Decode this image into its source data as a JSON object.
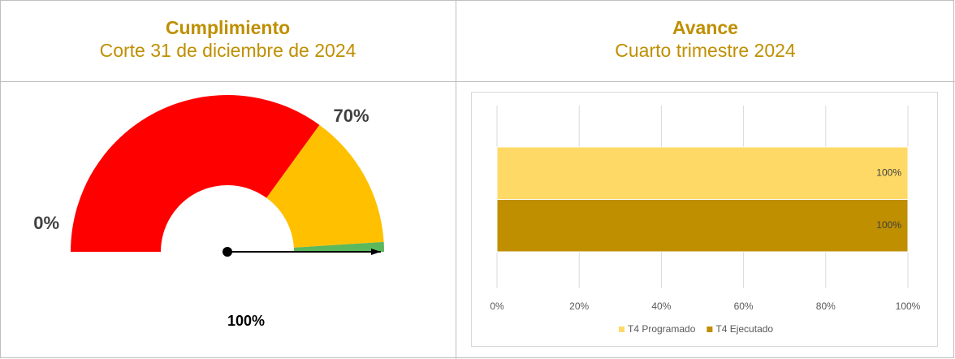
{
  "header": [
    {
      "title": "Cumplimiento",
      "subtitle": "Corte 31 de diciembre de 2024"
    },
    {
      "title": "Avance",
      "subtitle": "Cuarto trimestre 2024"
    }
  ],
  "chart_data": [
    {
      "type": "gauge",
      "lim": [
        0,
        100
      ],
      "ticks": [
        {
          "value": 0,
          "label": "0%"
        },
        {
          "value": 70,
          "label": "70%"
        }
      ],
      "bands": [
        {
          "from": 0,
          "to": 70,
          "color": "#ff0000"
        },
        {
          "from": 70,
          "to": 98,
          "color": "#ffc000"
        },
        {
          "from": 98,
          "to": 100,
          "color": "#5cb85c"
        }
      ],
      "value": 100,
      "value_label": "100%"
    },
    {
      "type": "bar",
      "orientation": "horizontal",
      "categories": [
        null
      ],
      "series": [
        {
          "name": "T4 Programado",
          "color": "#ffd966",
          "values": [
            100
          ],
          "value_labels": [
            "100%"
          ]
        },
        {
          "name": "T4 Ejecutado",
          "color": "#bf8f00",
          "values": [
            100
          ],
          "value_labels": [
            "100%"
          ]
        }
      ],
      "xlim": [
        0,
        100
      ],
      "xticks": [
        {
          "value": 0,
          "label": "0%"
        },
        {
          "value": 20,
          "label": "20%"
        },
        {
          "value": 40,
          "label": "40%"
        },
        {
          "value": 60,
          "label": "60%"
        },
        {
          "value": 80,
          "label": "80%"
        },
        {
          "value": 100,
          "label": "100%"
        }
      ],
      "grid": true,
      "legend": "bottom"
    }
  ]
}
